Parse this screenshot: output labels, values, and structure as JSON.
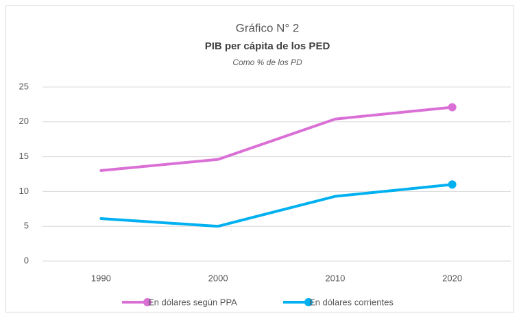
{
  "chart_data": {
    "type": "line",
    "title": "Gráfico N° 2",
    "subtitle": "PIB per cápita de los PED",
    "note": "Como % de los PD",
    "categories": [
      "1990",
      "2000",
      "2010",
      "2020"
    ],
    "series": [
      {
        "name": "En dólares según PPA",
        "color": "#da70d6",
        "values": [
          13.0,
          14.6,
          20.4,
          22.1
        ]
      },
      {
        "name": "En dólares corrientes",
        "color": "#00b0f0",
        "values": [
          6.1,
          5.0,
          9.3,
          11.0
        ]
      }
    ],
    "ylim": [
      0,
      25
    ],
    "yticks": [
      0,
      5,
      10,
      15,
      20,
      25
    ],
    "grid": true,
    "legend": "bottom"
  }
}
